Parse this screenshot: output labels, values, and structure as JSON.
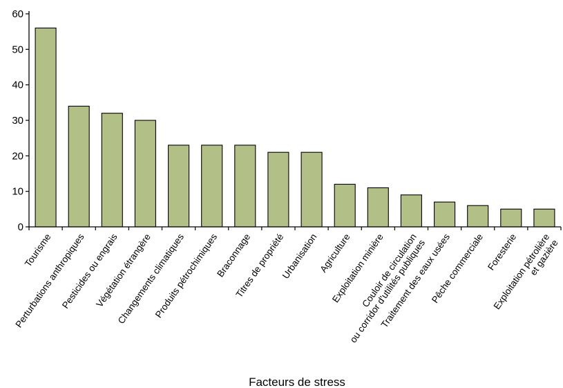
{
  "chart_data": {
    "type": "bar",
    "title": "",
    "xlabel": "Facteurs de stress",
    "ylabel": "",
    "ylim": [
      0,
      60
    ],
    "yticks": [
      0,
      10,
      20,
      30,
      40,
      50,
      60
    ],
    "grid": false,
    "bar_color": "#b2bf86",
    "categories": [
      [
        "Tourisme"
      ],
      [
        "Perturbations anthropiques"
      ],
      [
        "Pesticides ou engrais"
      ],
      [
        "Végétation étrangère"
      ],
      [
        "Changements climatiques"
      ],
      [
        "Produits pétrochimiques"
      ],
      [
        "Braconnage"
      ],
      [
        "Titres de propriété"
      ],
      [
        "Urbanisation"
      ],
      [
        "Agriculture"
      ],
      [
        "Exploitation minière"
      ],
      [
        "Couloir de circulation",
        "ou corridor d'utilités publiques"
      ],
      [
        "Traitement des eaux usées"
      ],
      [
        "Pêche commerciale"
      ],
      [
        "Foresterie"
      ],
      [
        "Exploitation pétrolière",
        "et gazière"
      ]
    ],
    "values": [
      56,
      34,
      32,
      30,
      23,
      23,
      23,
      21,
      21,
      12,
      11,
      9,
      7,
      6,
      5,
      5
    ]
  }
}
